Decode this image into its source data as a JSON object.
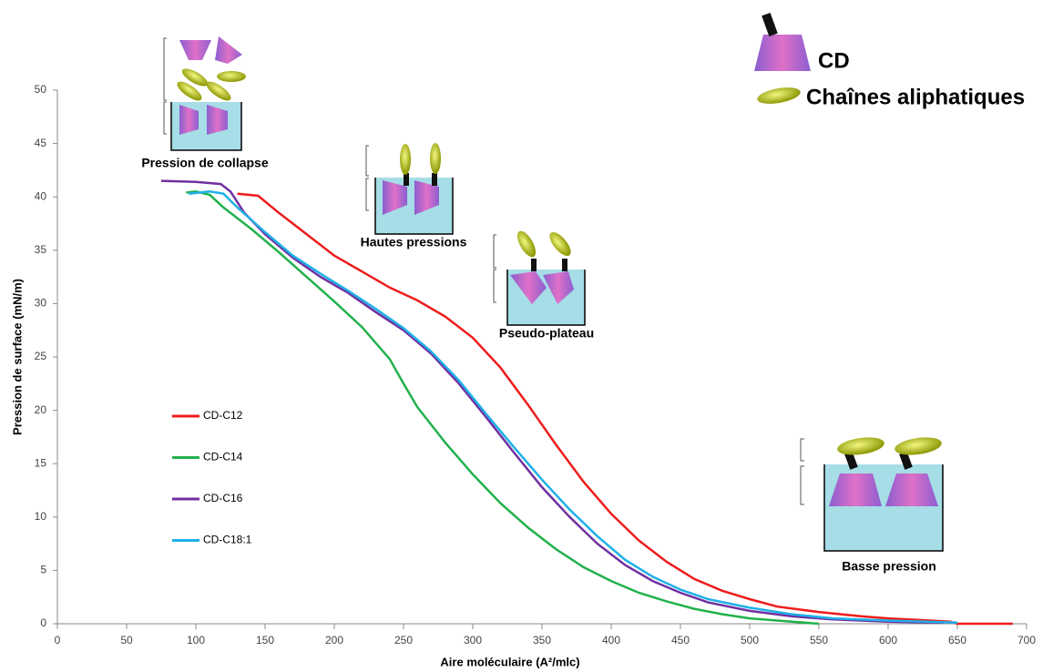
{
  "chart_data": {
    "type": "line",
    "x_label": "Aire moléculaire (A²/mlc)",
    "y_label": "Pression de surface (mN/m)",
    "xlim": [
      0,
      700
    ],
    "xticks": [
      0,
      50,
      100,
      150,
      200,
      250,
      300,
      350,
      400,
      450,
      500,
      550,
      600,
      650,
      700
    ],
    "ylim": [
      0,
      50
    ],
    "yticks": [
      0,
      5,
      10,
      15,
      20,
      25,
      30,
      35,
      40,
      45,
      50
    ],
    "series": [
      {
        "name": "CD-C12",
        "color": "#ee1c1c",
        "x": [
          130,
          145,
          160,
          180,
          200,
          220,
          240,
          260,
          280,
          300,
          320,
          340,
          360,
          380,
          400,
          420,
          440,
          460,
          480,
          500,
          520,
          550,
          580,
          600,
          645,
          650,
          690
        ],
        "values": [
          40.3,
          40.1,
          38.5,
          36.5,
          34.5,
          33,
          31.5,
          30.3,
          28.8,
          26.8,
          24,
          20.5,
          16.8,
          13.3,
          10.3,
          7.8,
          5.8,
          4.2,
          3.1,
          2.3,
          1.6,
          1.1,
          0.7,
          0.5,
          0.2,
          0,
          0
        ]
      },
      {
        "name": "CD-C14",
        "color": "#22b14c",
        "x": [
          93,
          100,
          110,
          120,
          140,
          160,
          180,
          200,
          220,
          240,
          250,
          260,
          280,
          300,
          320,
          340,
          360,
          380,
          400,
          420,
          440,
          460,
          480,
          500,
          520,
          550
        ],
        "values": [
          40.4,
          40.5,
          40.2,
          39,
          37,
          34.8,
          32.5,
          30.2,
          27.8,
          24.8,
          22.5,
          20.3,
          17,
          14,
          11.3,
          9,
          7,
          5.3,
          4,
          2.9,
          2.1,
          1.4,
          0.9,
          0.5,
          0.3,
          0
        ]
      },
      {
        "name": "CD-C16",
        "color": "#7030a0",
        "x": [
          75,
          100,
          118,
          125,
          135,
          150,
          170,
          190,
          210,
          230,
          250,
          270,
          290,
          310,
          330,
          350,
          370,
          390,
          410,
          430,
          450,
          470,
          500,
          530,
          560,
          600,
          640
        ],
        "values": [
          41.5,
          41.4,
          41.2,
          40.5,
          38.5,
          36.5,
          34.3,
          32.5,
          31,
          29.2,
          27.5,
          25.3,
          22.5,
          19.3,
          16,
          12.8,
          10,
          7.5,
          5.5,
          4,
          2.9,
          2,
          1.2,
          0.7,
          0.4,
          0.2,
          0.1
        ]
      },
      {
        "name": "CD-C18:1",
        "color": "#1fb0e8",
        "x": [
          95,
          110,
          120,
          130,
          150,
          170,
          190,
          210,
          230,
          250,
          270,
          290,
          310,
          330,
          350,
          370,
          390,
          410,
          430,
          450,
          470,
          500,
          530,
          560,
          600,
          650
        ],
        "values": [
          40.3,
          40.5,
          40.3,
          39,
          36.7,
          34.5,
          32.8,
          31.2,
          29.5,
          27.7,
          25.5,
          22.8,
          19.6,
          16.5,
          13.5,
          10.7,
          8.2,
          6,
          4.4,
          3.2,
          2.3,
          1.5,
          0.9,
          0.5,
          0.3,
          0.1
        ]
      }
    ],
    "annotations": [
      "Pression de collapse",
      "Hautes pressions",
      "Pseudo-plateau",
      "Basse pression"
    ],
    "symbol_legend": [
      "CD",
      "Chaînes aliphatiques"
    ]
  }
}
